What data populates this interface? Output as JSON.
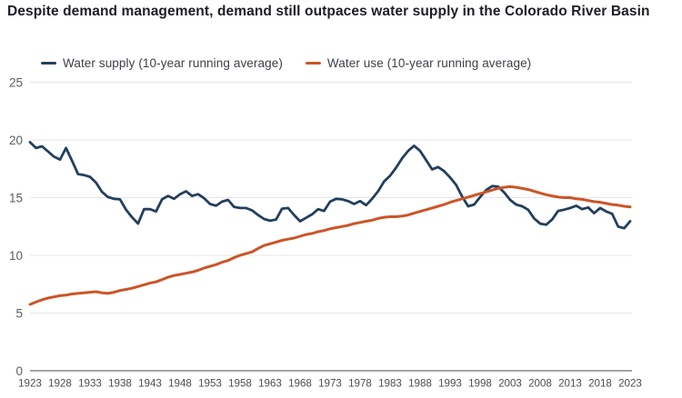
{
  "title": "Despite demand management, demand still outpaces water supply in the Colorado River Basin",
  "legend": {
    "supply": {
      "label": "Water supply (10-year running average)"
    },
    "use": {
      "label": "Water use (10-year running average)"
    }
  },
  "colors": {
    "supply": "#233f5e",
    "use": "#cb5528",
    "gridline": "#e4e5e7",
    "axis_line": "#85878b",
    "title_text": "#1d1e26",
    "tick_text": "#5b5d63"
  },
  "chart_data": {
    "type": "line",
    "title": "Despite demand management, demand still outpaces water supply in the Colorado River Basin",
    "x_start": 1923,
    "x_end": 2023,
    "x_step": 1,
    "xticks": [
      1923,
      1928,
      1933,
      1938,
      1943,
      1948,
      1953,
      1958,
      1963,
      1968,
      1973,
      1978,
      1983,
      1988,
      1993,
      1998,
      2003,
      2008,
      2013,
      2018,
      2023
    ],
    "yticks": [
      0,
      5,
      10,
      15,
      20,
      25
    ],
    "ylim": [
      0,
      25
    ],
    "grid": "horizontal",
    "legend_position": "top",
    "series": [
      {
        "id": "supply",
        "name": "Water supply (10-year running average)",
        "color": "#233f5e",
        "width": 2.8,
        "values": [
          19.8,
          19.3,
          19.45,
          19.0,
          18.55,
          18.3,
          19.3,
          18.2,
          17.05,
          16.95,
          16.8,
          16.3,
          15.5,
          15.05,
          14.9,
          14.85,
          13.95,
          13.3,
          12.75,
          14.0,
          14.0,
          13.8,
          14.85,
          15.15,
          14.9,
          15.3,
          15.55,
          15.15,
          15.3,
          14.95,
          14.45,
          14.3,
          14.65,
          14.8,
          14.2,
          14.1,
          14.1,
          13.9,
          13.5,
          13.15,
          13.0,
          13.1,
          14.05,
          14.1,
          13.5,
          12.95,
          13.25,
          13.55,
          14.0,
          13.85,
          14.65,
          14.9,
          14.85,
          14.7,
          14.45,
          14.7,
          14.35,
          14.9,
          15.55,
          16.4,
          16.9,
          17.6,
          18.4,
          19.05,
          19.5,
          19.05,
          18.25,
          17.45,
          17.65,
          17.3,
          16.75,
          16.1,
          15.1,
          14.25,
          14.4,
          15.05,
          15.65,
          16.0,
          15.95,
          15.45,
          14.8,
          14.4,
          14.25,
          13.95,
          13.2,
          12.75,
          12.65,
          13.1,
          13.85,
          13.95,
          14.1,
          14.3,
          14.0,
          14.15,
          13.65,
          14.1,
          13.8,
          13.6,
          12.5,
          12.35,
          12.95
        ]
      },
      {
        "id": "use",
        "name": "Water use (10-year running average)",
        "color": "#cb5528",
        "width": 3,
        "values": [
          5.75,
          5.95,
          6.15,
          6.3,
          6.4,
          6.5,
          6.55,
          6.65,
          6.7,
          6.75,
          6.8,
          6.85,
          6.75,
          6.7,
          6.8,
          6.95,
          7.05,
          7.15,
          7.3,
          7.45,
          7.6,
          7.7,
          7.9,
          8.1,
          8.25,
          8.35,
          8.45,
          8.55,
          8.7,
          8.9,
          9.05,
          9.2,
          9.4,
          9.55,
          9.8,
          10.0,
          10.15,
          10.3,
          10.6,
          10.85,
          11.0,
          11.15,
          11.3,
          11.4,
          11.5,
          11.65,
          11.8,
          11.9,
          12.05,
          12.15,
          12.3,
          12.4,
          12.5,
          12.6,
          12.75,
          12.85,
          12.95,
          13.05,
          13.2,
          13.3,
          13.35,
          13.35,
          13.4,
          13.5,
          13.65,
          13.8,
          13.95,
          14.1,
          14.25,
          14.4,
          14.6,
          14.75,
          14.9,
          15.05,
          15.2,
          15.35,
          15.5,
          15.65,
          15.8,
          15.9,
          15.95,
          15.9,
          15.8,
          15.7,
          15.55,
          15.4,
          15.25,
          15.15,
          15.05,
          15.0,
          15.0,
          14.9,
          14.85,
          14.75,
          14.65,
          14.6,
          14.5,
          14.4,
          14.35,
          14.25,
          14.2
        ]
      }
    ]
  }
}
